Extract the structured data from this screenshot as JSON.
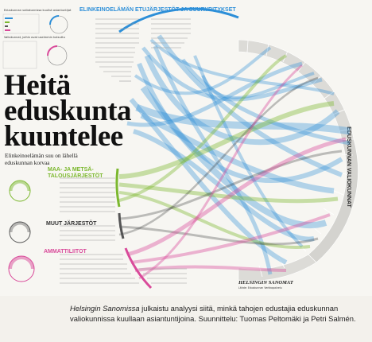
{
  "poster": {
    "title": "Heitä eduskunta kuuntelee",
    "subtitle": "Elinkeinoelämän suu on lähellä eduskunnan korvaa",
    "groups": {
      "business": "ELINKEINOELÄMÄN ETUJÄRJESTÖT JA SUURYRITYKSET",
      "agri": "MAA- JA METSÄ-TALOUSJÄRJESTÖT",
      "other": "MUUT JÄRJESTÖT",
      "unions": "AMMATTILIITOT",
      "committees": "EDUSKUNNAN VALIOKUNNAT"
    },
    "legend_top": "Eduskunnan valiokunnissa kuullut asiantuntijat",
    "legend_bottom": "Valiokunnat, joihin ovat useimmin kutsuttu",
    "logo": "HELSINGIN SANOMAT",
    "source_note": "Lähde: Eduskunnan Verkkopalvelu"
  },
  "caption": {
    "italic": "Helsingin Sanomissa",
    "rest": " julkaistu analyysi siitä, minkä tahojen edustajia eduskunnan valiokunnissa kuullaan asiantuntijoina. Suunnittelu: Tuomas Peltomäki ja Petri Salmén."
  },
  "colors": {
    "business": "#2d8fd8",
    "agri": "#7cb82f",
    "other": "#555555",
    "unions": "#d94a9a",
    "ring": "#d9d8d4"
  }
}
